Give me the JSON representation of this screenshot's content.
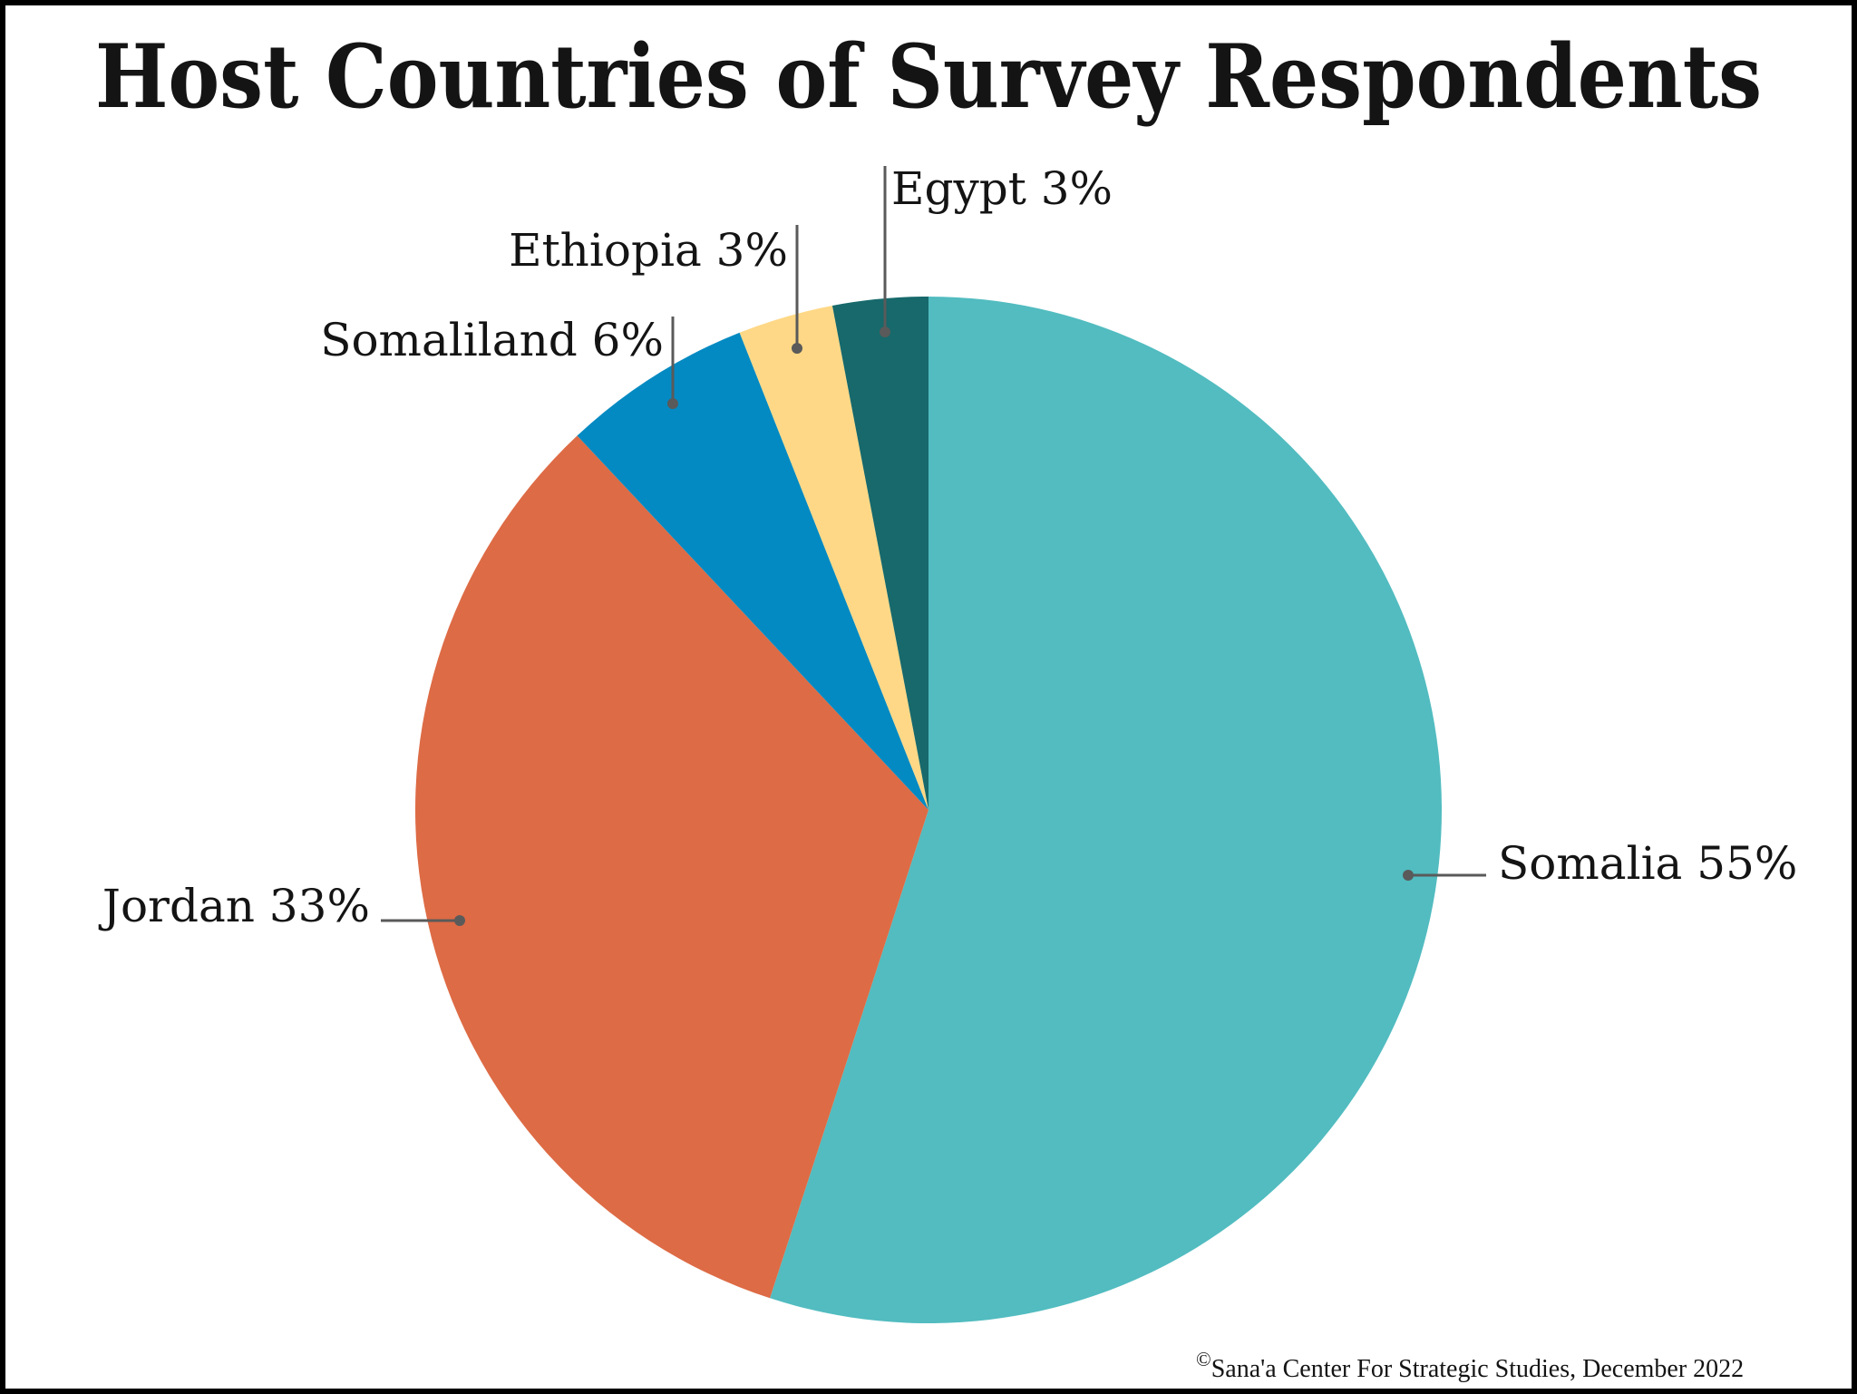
{
  "chart_data": {
    "type": "pie",
    "title": "Host Countries of Survey Respondents",
    "start": "top",
    "direction": "clockwise",
    "slices": [
      {
        "label": "Somalia",
        "value": 55,
        "display": "Somalia 55%",
        "color": "#52BCC0"
      },
      {
        "label": "Jordan",
        "value": 33,
        "display": "Jordan 33%",
        "color": "#DD6B45"
      },
      {
        "label": "Somaliland",
        "value": 6,
        "display": "Somaliland 6%",
        "color": "#048AC2"
      },
      {
        "label": "Ethiopia",
        "value": 3,
        "display": "Ethiopia 3%",
        "color": "#FED886"
      },
      {
        "label": "Egypt",
        "value": 3,
        "display": "Egypt 3%",
        "color": "#17696B"
      }
    ],
    "leader_color": "#5A5A5A"
  },
  "footer": {
    "copyright_symbol": "©",
    "credit": "Sana'a Center For Strategic Studies, December 2022"
  }
}
